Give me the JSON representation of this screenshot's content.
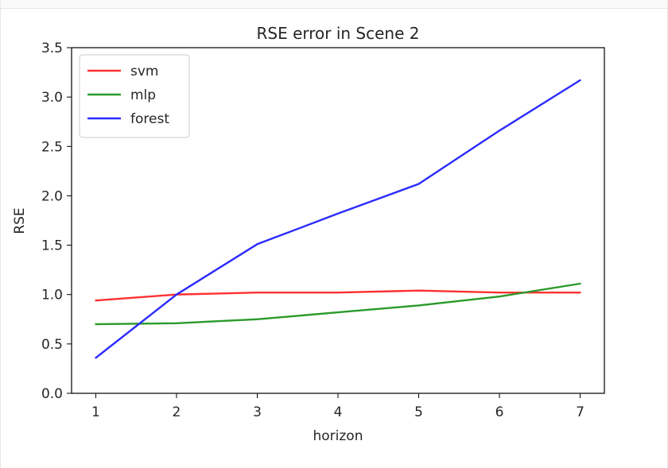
{
  "chart_data": {
    "type": "line",
    "title": "RSE error in Scene 2",
    "xlabel": "horizon",
    "ylabel": "RSE",
    "x": [
      1,
      2,
      3,
      4,
      5,
      6,
      7
    ],
    "xlim": [
      0.7,
      7.3
    ],
    "ylim": [
      0,
      3.5
    ],
    "xticks": [
      "1",
      "2",
      "3",
      "4",
      "5",
      "6",
      "7"
    ],
    "yticks": [
      "0.0",
      "0.5",
      "1.0",
      "1.5",
      "2.0",
      "2.5",
      "3.0",
      "3.5"
    ],
    "grid": false,
    "legend_position": "top-left",
    "series": [
      {
        "name": "svm",
        "color": "#ff3030",
        "values": [
          0.94,
          1.0,
          1.02,
          1.02,
          1.04,
          1.02,
          1.02
        ]
      },
      {
        "name": "mlp",
        "color": "#2a9a2a",
        "values": [
          0.7,
          0.71,
          0.75,
          0.82,
          0.89,
          0.98,
          1.11
        ]
      },
      {
        "name": "forest",
        "color": "#2b2bff",
        "values": [
          0.36,
          1.0,
          1.51,
          1.82,
          2.12,
          2.66,
          3.17
        ]
      }
    ]
  }
}
